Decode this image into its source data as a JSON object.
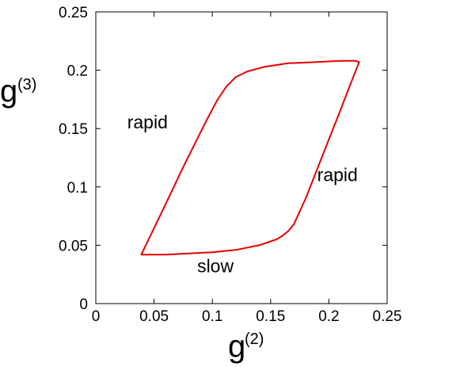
{
  "chart_data": {
    "type": "line",
    "xlabel": "g",
    "xlabel_sup": "(2)",
    "ylabel": "g",
    "ylabel_sup": "(3)",
    "xlim": [
      0,
      0.25
    ],
    "ylim": [
      0,
      0.25
    ],
    "xticks": [
      0,
      0.05,
      0.1,
      0.15,
      0.2,
      0.25
    ],
    "xtick_labels": [
      "0",
      "0.05",
      "0.1",
      "0.15",
      "0.2",
      "0.25"
    ],
    "yticks": [
      0,
      0.05,
      0.1,
      0.15,
      0.2,
      0.25
    ],
    "ytick_labels": [
      "0",
      "0.05",
      "0.1",
      "0.15",
      "0.2",
      "0.25"
    ],
    "grid": false,
    "line_color": "#e60000",
    "series": [
      {
        "x": [
          0.039,
          0.055,
          0.075,
          0.095,
          0.104,
          0.108,
          0.112,
          0.12,
          0.13,
          0.145,
          0.165,
          0.19,
          0.21,
          0.223,
          0.226,
          0.222,
          0.21,
          0.195,
          0.18,
          0.17,
          0.165,
          0.16,
          0.155,
          0.14,
          0.12,
          0.1,
          0.08,
          0.06,
          0.048,
          0.039
        ],
        "y": [
          0.042,
          0.075,
          0.117,
          0.157,
          0.174,
          0.18,
          0.186,
          0.194,
          0.199,
          0.203,
          0.206,
          0.207,
          0.208,
          0.208,
          0.207,
          0.197,
          0.166,
          0.128,
          0.09,
          0.068,
          0.062,
          0.058,
          0.055,
          0.05,
          0.046,
          0.044,
          0.043,
          0.042,
          0.042,
          0.042
        ]
      }
    ],
    "annotations": [
      {
        "text": "rapid",
        "x": 0.027,
        "y": 0.15
      },
      {
        "text": "rapid",
        "x": 0.19,
        "y": 0.105
      },
      {
        "text": "slow",
        "x": 0.087,
        "y": 0.027
      }
    ]
  }
}
